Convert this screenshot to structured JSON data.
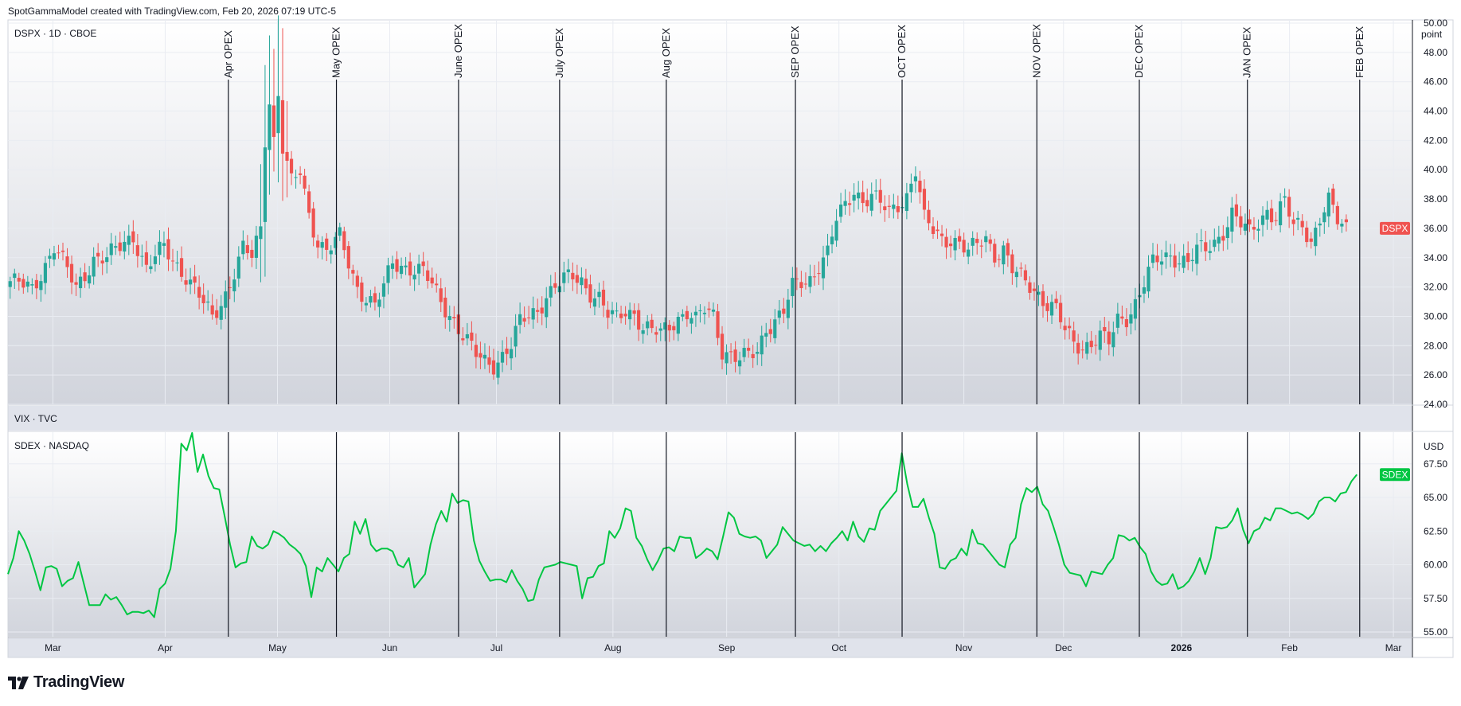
{
  "header": {
    "caption": "SpotGammaModel created with TradingView.com, Feb 20, 2026 07:19 UTC-5"
  },
  "branding": {
    "logo_text": "TradingView"
  },
  "chart_data": [
    {
      "type": "candlestick",
      "pane_title": "DSPX · 1D · CBOE",
      "symbol_label": "DSPX",
      "unit_label": "point",
      "ylim": [
        24,
        50
      ],
      "y_ticks": [
        "24.00",
        "26.00",
        "28.00",
        "30.00",
        "32.00",
        "34.00",
        "36.00",
        "38.00",
        "40.00",
        "42.00",
        "44.00",
        "46.00",
        "48.00",
        "50.00"
      ],
      "last_value": 36.0,
      "colors": {
        "up": "#26a69a",
        "down": "#ef5350",
        "badge": "#ef5350"
      },
      "close_path": [
        [
          0,
          32.4
        ],
        [
          5,
          31.8
        ],
        [
          10,
          34.8
        ],
        [
          15,
          31.9
        ],
        [
          19,
          34.0
        ],
        [
          22,
          33.9
        ],
        [
          28,
          35.6
        ],
        [
          31,
          33.2
        ],
        [
          35,
          34.7
        ],
        [
          40,
          32.8
        ],
        [
          44,
          30.8
        ],
        [
          46,
          29.9
        ],
        [
          49,
          31.6
        ],
        [
          53,
          34.5
        ],
        [
          55,
          34.0
        ],
        [
          57,
          36.0
        ],
        [
          58,
          42.2
        ],
        [
          59,
          44.9
        ],
        [
          60,
          42.1
        ],
        [
          61,
          45.2
        ],
        [
          62,
          41.5
        ],
        [
          64,
          39.0
        ],
        [
          66,
          39.8
        ],
        [
          68,
          37.0
        ],
        [
          70,
          35.2
        ],
        [
          72,
          34.5
        ],
        [
          75,
          35.3
        ],
        [
          77,
          33.6
        ],
        [
          79,
          32.0
        ],
        [
          81,
          31.4
        ],
        [
          83,
          30.7
        ],
        [
          85,
          31.9
        ],
        [
          87,
          33.6
        ],
        [
          89,
          33.5
        ],
        [
          91,
          33.4
        ],
        [
          94,
          33.0
        ],
        [
          97,
          31.5
        ],
        [
          99,
          30.6
        ],
        [
          101,
          29.8
        ],
        [
          103,
          28.7
        ],
        [
          106,
          27.3
        ],
        [
          108,
          26.9
        ],
        [
          110,
          26.8
        ],
        [
          112,
          27.4
        ],
        [
          114,
          28.0
        ],
        [
          116,
          29.5
        ],
        [
          118,
          30.0
        ],
        [
          120,
          30.5
        ],
        [
          122,
          31.5
        ],
        [
          124,
          32.0
        ],
        [
          126,
          32.4
        ],
        [
          128,
          32.7
        ],
        [
          130,
          32.5
        ],
        [
          132,
          31.7
        ],
        [
          134,
          31.2
        ],
        [
          136,
          30.0
        ],
        [
          138,
          29.8
        ],
        [
          140,
          30.5
        ],
        [
          142,
          30.3
        ],
        [
          144,
          29.2
        ],
        [
          146,
          28.9
        ],
        [
          148,
          28.8
        ],
        [
          150,
          29.4
        ],
        [
          152,
          30.0
        ],
        [
          154,
          30.3
        ],
        [
          156,
          29.6
        ],
        [
          158,
          30.4
        ],
        [
          160,
          30.1
        ],
        [
          162,
          27.8
        ],
        [
          164,
          27.4
        ],
        [
          166,
          27.0
        ],
        [
          168,
          27.2
        ],
        [
          170,
          27.6
        ],
        [
          172,
          29.3
        ],
        [
          174,
          29.8
        ],
        [
          176,
          30.3
        ],
        [
          178,
          31.9
        ],
        [
          180,
          32.3
        ],
        [
          182,
          32.6
        ],
        [
          184,
          33.6
        ],
        [
          186,
          34.3
        ],
        [
          188,
          36.5
        ],
        [
          190,
          37.5
        ],
        [
          192,
          38.7
        ],
        [
          194,
          38.0
        ],
        [
          196,
          38.2
        ],
        [
          198,
          37.6
        ],
        [
          200,
          37.0
        ],
        [
          202,
          37.7
        ],
        [
          204,
          38.3
        ],
        [
          206,
          40.0
        ],
        [
          208,
          36.5
        ],
        [
          210,
          35.8
        ],
        [
          212,
          35.3
        ],
        [
          214,
          35.4
        ],
        [
          216,
          35.0
        ],
        [
          218,
          34.3
        ],
        [
          220,
          34.8
        ],
        [
          222,
          35.4
        ],
        [
          224,
          34.3
        ],
        [
          226,
          34.6
        ],
        [
          228,
          33.1
        ],
        [
          230,
          32.5
        ],
        [
          232,
          32.1
        ],
        [
          234,
          31.6
        ],
        [
          236,
          30.9
        ],
        [
          238,
          30.4
        ],
        [
          240,
          28.9
        ],
        [
          242,
          28.2
        ],
        [
          244,
          28.0
        ],
        [
          246,
          28.3
        ],
        [
          248,
          28.6
        ],
        [
          250,
          28.1
        ],
        [
          252,
          29.7
        ],
        [
          254,
          30.0
        ],
        [
          256,
          31.0
        ],
        [
          258,
          32.3
        ],
        [
          260,
          33.5
        ],
        [
          262,
          33.9
        ],
        [
          264,
          34.2
        ],
        [
          266,
          34.0
        ],
        [
          268,
          33.7
        ],
        [
          270,
          34.4
        ],
        [
          272,
          34.5
        ],
        [
          274,
          35.1
        ],
        [
          276,
          35.9
        ],
        [
          278,
          37.0
        ],
        [
          280,
          36.2
        ],
        [
          282,
          35.6
        ],
        [
          284,
          36.5
        ],
        [
          286,
          37.3
        ],
        [
          288,
          36.8
        ],
        [
          290,
          37.8
        ],
        [
          292,
          36.0
        ],
        [
          294,
          36.3
        ],
        [
          296,
          35.2
        ],
        [
          298,
          36.8
        ],
        [
          300,
          37.8
        ],
        [
          302,
          36.4
        ],
        [
          304,
          36.0
        ]
      ]
    },
    {
      "type": "line",
      "pane_title": "SDEX · NASDAQ",
      "symbol_label": "SDEX",
      "unit_label": "USD",
      "ylim": [
        55,
        69.5
      ],
      "y_ticks": [
        "55.00",
        "57.50",
        "60.00",
        "62.50",
        "65.00",
        "67.50"
      ],
      "last_value": 66.7,
      "colors": {
        "line": "#00c642",
        "badge": "#00c642"
      },
      "values": [
        59.3,
        60.5,
        62.5,
        61.8,
        60.8,
        59.5,
        58.1,
        59.8,
        59.9,
        59.7,
        58.4,
        58.8,
        59.0,
        60.2,
        58.6,
        57.0,
        57.0,
        57.0,
        57.8,
        57.4,
        57.6,
        57.0,
        56.3,
        56.5,
        56.5,
        56.4,
        56.6,
        56.1,
        58.2,
        58.6,
        59.7,
        62.5,
        69.0,
        68.5,
        69.8,
        66.9,
        68.2,
        66.6,
        65.7,
        65.6,
        63.6,
        61.5,
        59.8,
        60.1,
        60.2,
        62.1,
        61.4,
        61.2,
        61.5,
        62.5,
        62.3,
        62.0,
        61.5,
        61.2,
        60.8,
        59.9,
        57.6,
        59.8,
        59.5,
        60.5,
        60.0,
        59.5,
        60.5,
        60.8,
        63.2,
        62.3,
        63.4,
        61.5,
        61.0,
        61.2,
        61.2,
        61.0,
        60.0,
        59.8,
        60.5,
        58.3,
        58.8,
        59.3,
        61.5,
        63.0,
        64.0,
        63.2,
        65.3,
        64.6,
        64.8,
        64.7,
        61.8,
        60.3,
        59.5,
        58.8,
        58.9,
        58.9,
        58.7,
        59.6,
        58.8,
        58.2,
        57.3,
        57.4,
        58.9,
        59.8,
        59.9,
        60.0,
        60.2,
        60.1,
        60.0,
        59.9,
        57.5,
        59.0,
        59.1,
        59.9,
        60.1,
        62.5,
        62.0,
        62.7,
        64.2,
        64.0,
        62.0,
        61.4,
        60.4,
        59.6,
        60.3,
        61.2,
        61.3,
        61.0,
        62.1,
        62.0,
        62.0,
        60.5,
        60.8,
        61.2,
        61.0,
        60.4,
        62.1,
        63.9,
        63.5,
        62.3,
        62.1,
        62.0,
        62.1,
        61.8,
        60.5,
        61.0,
        61.5,
        62.8,
        62.3,
        61.8,
        61.6,
        61.4,
        61.5,
        61.0,
        61.4,
        61.0,
        61.6,
        62.0,
        62.5,
        61.8,
        63.2,
        62.1,
        61.7,
        62.7,
        62.6,
        64.0,
        64.5,
        65.0,
        65.5,
        68.3,
        66.0,
        64.3,
        64.3,
        64.9,
        63.5,
        62.3,
        59.8,
        59.7,
        60.3,
        60.5,
        61.2,
        60.7,
        62.6,
        61.6,
        61.5,
        61.0,
        60.5,
        60.0,
        59.8,
        61.5,
        62.0,
        64.5,
        65.7,
        65.4,
        65.8,
        64.5,
        64.0,
        62.8,
        61.5,
        60.0,
        59.4,
        59.3,
        59.2,
        58.4,
        59.5,
        59.4,
        59.3,
        60.0,
        60.5,
        62.2,
        62.1,
        61.8,
        62.0,
        61.3,
        60.8,
        59.5,
        58.8,
        58.5,
        58.6,
        59.3,
        58.2,
        58.4,
        58.8,
        59.5,
        60.5,
        59.3,
        60.5,
        62.8,
        62.7,
        62.8,
        63.3,
        64.2,
        62.6,
        61.6,
        62.5,
        62.7,
        63.5,
        63.3,
        64.2,
        64.2,
        64.0,
        63.8,
        63.9,
        63.7,
        63.4,
        63.8,
        64.7,
        65.0,
        65.0,
        64.7,
        65.3,
        65.4,
        66.2,
        66.7
      ]
    }
  ],
  "x_axis": {
    "labels": [
      {
        "text": "Mar",
        "bold": false,
        "pos": 0.032
      },
      {
        "text": "Apr",
        "bold": false,
        "pos": 0.112
      },
      {
        "text": "May",
        "bold": false,
        "pos": 0.192
      },
      {
        "text": "Jun",
        "bold": false,
        "pos": 0.272
      },
      {
        "text": "Jul",
        "bold": false,
        "pos": 0.348
      },
      {
        "text": "Aug",
        "bold": false,
        "pos": 0.431
      },
      {
        "text": "Sep",
        "bold": false,
        "pos": 0.512
      },
      {
        "text": "Oct",
        "bold": false,
        "pos": 0.592
      },
      {
        "text": "Nov",
        "bold": false,
        "pos": 0.681
      },
      {
        "text": "Dec",
        "bold": false,
        "pos": 0.752
      },
      {
        "text": "2026",
        "bold": true,
        "pos": 0.836
      },
      {
        "text": "Feb",
        "bold": false,
        "pos": 0.913
      },
      {
        "text": "Mar",
        "bold": false,
        "pos": 0.987
      }
    ]
  },
  "middle_pane": {
    "title": "VIX · TVC"
  },
  "opex_markers": [
    {
      "label": "Apr OPEX",
      "pos": 0.157
    },
    {
      "label": "May OPEX",
      "pos": 0.234
    },
    {
      "label": "June OPEX",
      "pos": 0.321
    },
    {
      "label": "July OPEX",
      "pos": 0.393
    },
    {
      "label": "Aug OPEX",
      "pos": 0.469
    },
    {
      "label": "SEP OPEX",
      "pos": 0.561
    },
    {
      "label": "OCT OPEX",
      "pos": 0.637
    },
    {
      "label": "NOV OPEX",
      "pos": 0.733
    },
    {
      "label": "DEC OPEX",
      "pos": 0.806
    },
    {
      "label": "JAN OPEX",
      "pos": 0.883
    },
    {
      "label": "FEB OPEX",
      "pos": 0.963
    }
  ]
}
